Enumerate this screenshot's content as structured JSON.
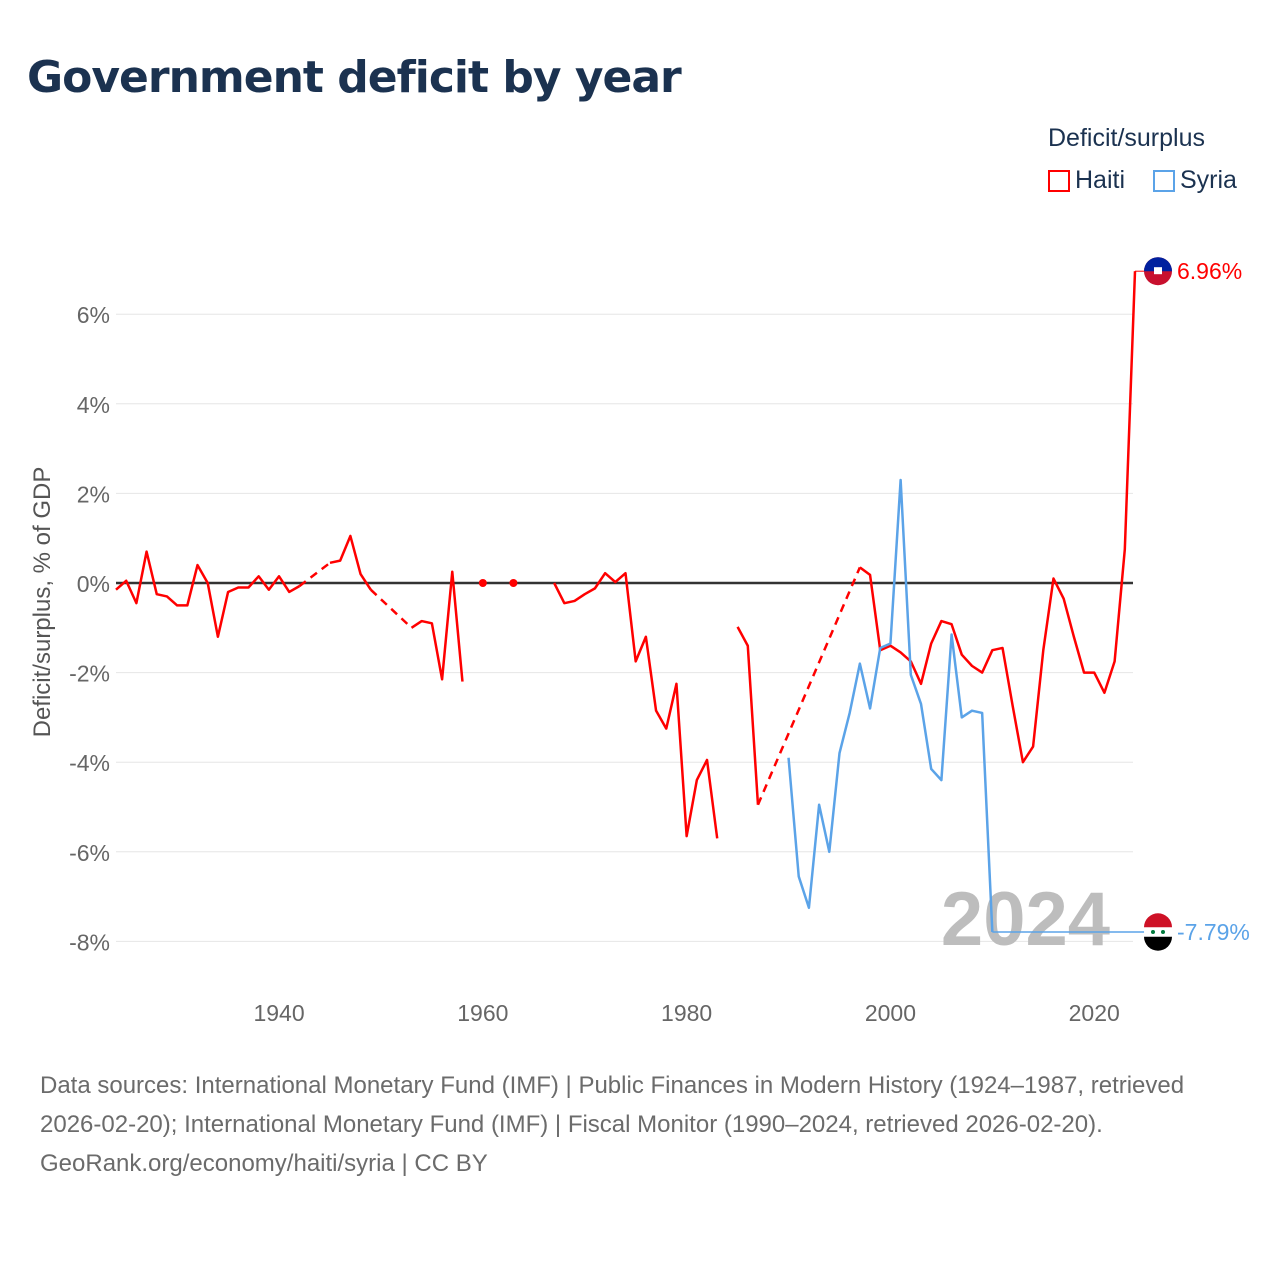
{
  "title": "Government deficit by year",
  "legend": {
    "title": "Deficit/surplus",
    "items": [
      {
        "label": "Haiti",
        "color": "#ff0000"
      },
      {
        "label": "Syria",
        "color": "#5ba3e8"
      }
    ]
  },
  "source_text": "Data sources: International Monetary Fund (IMF) | Public Finances in Modern History (1924–1987, retrieved 2026-02-20); International Monetary Fund (IMF) | Fiscal Monitor (1990–2024, retrieved 2026-02-20).",
  "attribution": "GeoRank.org/economy/haiti/syria | CC BY",
  "chart_data": {
    "type": "line",
    "title": "Government deficit by year",
    "xlabel": "",
    "ylabel": "Deficit/surplus, % of GDP",
    "xlim": [
      1924,
      2024
    ],
    "ylim": [
      -9,
      7.5
    ],
    "xticks": [
      1940,
      1960,
      1980,
      2000,
      2020
    ],
    "xtick_labels": [
      "1940",
      "1960",
      "1980",
      "2000",
      "2020"
    ],
    "yticks": [
      6,
      4,
      2,
      0,
      -2,
      -4,
      -6,
      -8
    ],
    "ytick_labels": [
      "6%",
      "4%",
      "2%",
      "0%",
      "-2%",
      "-4%",
      "-6%",
      "-8%"
    ],
    "year_watermark": "2024",
    "legend_placement": "top-right",
    "series": [
      {
        "name": "Haiti",
        "color": "#ff0000",
        "end_label": "6.96%",
        "dashed_gaps": [
          [
            1942,
            1945
          ],
          [
            1949,
            1953
          ],
          [
            1987,
            1997
          ]
        ],
        "points": [
          [
            1924,
            -0.15
          ],
          [
            1925,
            0.05
          ],
          [
            1926,
            -0.45
          ],
          [
            1927,
            0.7
          ],
          [
            1928,
            -0.25
          ],
          [
            1929,
            -0.3
          ],
          [
            1930,
            -0.5
          ],
          [
            1931,
            -0.5
          ],
          [
            1932,
            0.4
          ],
          [
            1933,
            0
          ],
          [
            1934,
            -1.2
          ],
          [
            1935,
            -0.2
          ],
          [
            1936,
            -0.1
          ],
          [
            1937,
            -0.1
          ],
          [
            1938,
            0.15
          ],
          [
            1939,
            -0.15
          ],
          [
            1940,
            0.15
          ],
          [
            1941,
            -0.2
          ],
          [
            1942,
            -0.07
          ],
          [
            1945,
            0.45
          ],
          [
            1946,
            0.5
          ],
          [
            1947,
            1.05
          ],
          [
            1948,
            0.2
          ],
          [
            1949,
            -0.15
          ],
          [
            1953,
            -1.0
          ],
          [
            1954,
            -0.85
          ],
          [
            1955,
            -0.9
          ],
          [
            1956,
            -2.15
          ],
          [
            1957,
            0.25
          ],
          [
            1958,
            -2.2
          ],
          [
            1960,
            0
          ],
          [
            1963,
            0
          ],
          [
            1967,
            0
          ],
          [
            1968,
            -0.45
          ],
          [
            1969,
            -0.4
          ],
          [
            1970,
            -0.25
          ],
          [
            1971,
            -0.12
          ],
          [
            1972,
            0.22
          ],
          [
            1973,
            0.02
          ],
          [
            1974,
            0.22
          ],
          [
            1975,
            -1.75
          ],
          [
            1976,
            -1.2
          ],
          [
            1977,
            -2.85
          ],
          [
            1978,
            -3.25
          ],
          [
            1979,
            -2.25
          ],
          [
            1980,
            -5.65
          ],
          [
            1981,
            -4.4
          ],
          [
            1982,
            -3.95
          ],
          [
            1983,
            -5.7
          ],
          [
            1985,
            -0.98
          ],
          [
            1986,
            -1.4
          ],
          [
            1987,
            -4.95
          ],
          [
            1997,
            0.35
          ],
          [
            1998,
            0.18
          ],
          [
            1999,
            -1.5
          ],
          [
            2000,
            -1.4
          ],
          [
            2001,
            -1.55
          ],
          [
            2002,
            -1.75
          ],
          [
            2003,
            -2.25
          ],
          [
            2004,
            -1.35
          ],
          [
            2005,
            -0.85
          ],
          [
            2006,
            -0.92
          ],
          [
            2007,
            -1.6
          ],
          [
            2008,
            -1.85
          ],
          [
            2009,
            -2.0
          ],
          [
            2010,
            -1.5
          ],
          [
            2011,
            -1.45
          ],
          [
            2012,
            -2.75
          ],
          [
            2013,
            -4.0
          ],
          [
            2014,
            -3.65
          ],
          [
            2015,
            -1.5
          ],
          [
            2016,
            0.1
          ],
          [
            2017,
            -0.35
          ],
          [
            2018,
            -1.2
          ],
          [
            2019,
            -2.0
          ],
          [
            2020,
            -2.0
          ],
          [
            2021,
            -2.45
          ],
          [
            2022,
            -1.75
          ],
          [
            2023,
            0.75
          ],
          [
            2024,
            6.96
          ]
        ]
      },
      {
        "name": "Syria",
        "color": "#5ba3e8",
        "end_label": "-7.79%",
        "points": [
          [
            1990,
            -3.9
          ],
          [
            1991,
            -6.55
          ],
          [
            1992,
            -7.25
          ],
          [
            1993,
            -4.95
          ],
          [
            1994,
            -6.0
          ],
          [
            1995,
            -3.8
          ],
          [
            1996,
            -2.9
          ],
          [
            1997,
            -1.8
          ],
          [
            1998,
            -2.8
          ],
          [
            1999,
            -1.45
          ],
          [
            2000,
            -1.35
          ],
          [
            2001,
            2.3
          ],
          [
            2002,
            -2.05
          ],
          [
            2003,
            -2.7
          ],
          [
            2004,
            -4.15
          ],
          [
            2005,
            -4.4
          ],
          [
            2006,
            -1.15
          ],
          [
            2007,
            -3.0
          ],
          [
            2008,
            -2.85
          ],
          [
            2009,
            -2.9
          ],
          [
            2010,
            -7.79
          ]
        ]
      }
    ]
  }
}
